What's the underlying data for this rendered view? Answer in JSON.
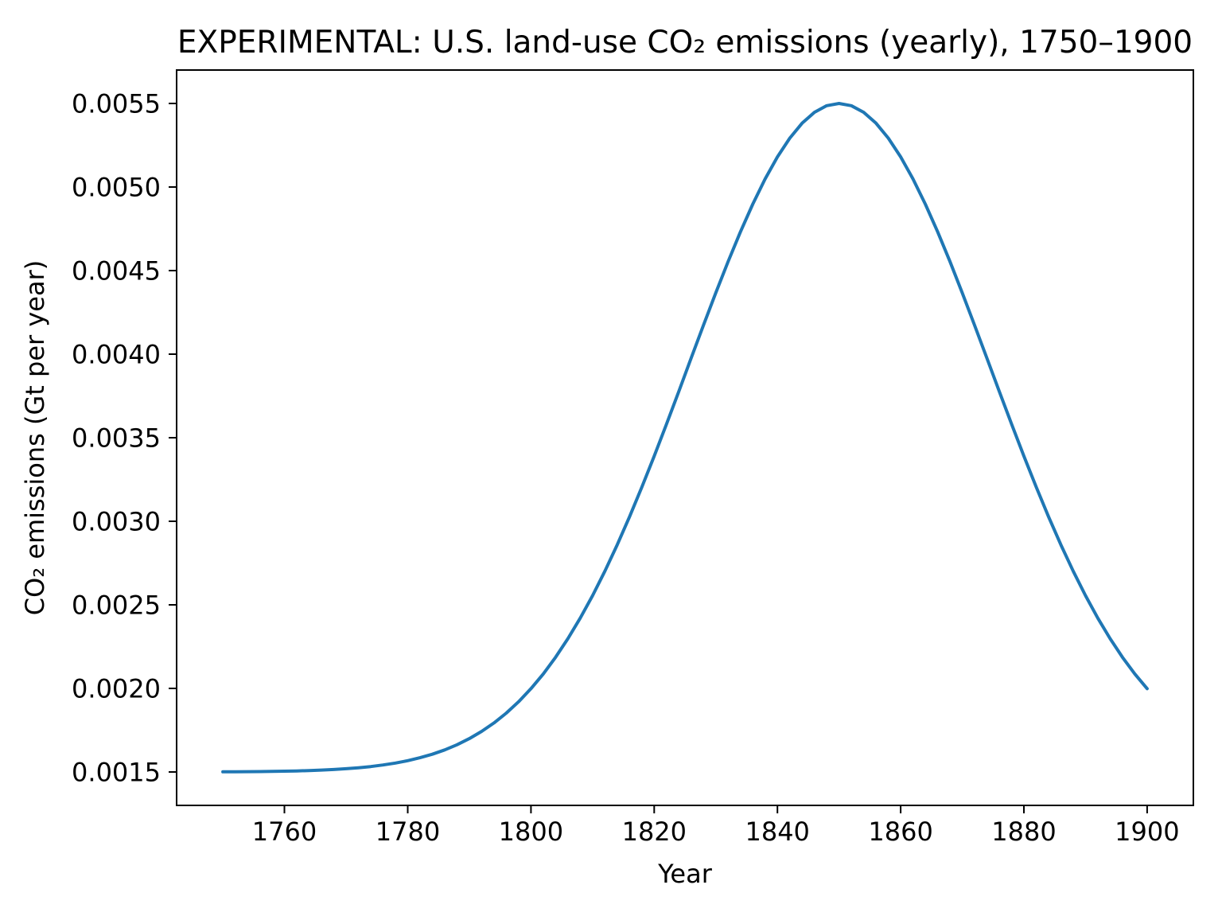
{
  "figure": {
    "background_color": "#ffffff",
    "axis_color": "#000000",
    "line_color": "#1f77b4"
  },
  "chart_data": {
    "type": "line",
    "title": "EXPERIMENTAL: U.S. land-use CO₂ emissions (yearly), 1750–1900",
    "xlabel": "Year",
    "ylabel": "CO₂ emissions (Gt per year)",
    "grid": false,
    "legend": "none",
    "xlim": [
      1742.5,
      1907.5
    ],
    "ylim": [
      0.0013,
      0.0057
    ],
    "x_ticks": [
      1760,
      1780,
      1800,
      1820,
      1840,
      1860,
      1880,
      1900
    ],
    "x_tick_labels": [
      "1760",
      "1780",
      "1800",
      "1820",
      "1840",
      "1860",
      "1880",
      "1900"
    ],
    "y_ticks": [
      0.0015,
      0.002,
      0.0025,
      0.003,
      0.0035,
      0.004,
      0.0045,
      0.005,
      0.0055
    ],
    "y_tick_labels": [
      "0.0015",
      "0.0020",
      "0.0025",
      "0.0030",
      "0.0035",
      "0.0040",
      "0.0045",
      "0.0050",
      "0.0055"
    ],
    "series": [
      {
        "name": "CO₂ emissions",
        "color": "#1f77b4",
        "line_width": 4,
        "x": [
          1750,
          1752,
          1754,
          1756,
          1758,
          1760,
          1762,
          1764,
          1766,
          1768,
          1770,
          1772,
          1774,
          1776,
          1778,
          1780,
          1782,
          1784,
          1786,
          1788,
          1790,
          1792,
          1794,
          1796,
          1798,
          1800,
          1802,
          1804,
          1806,
          1808,
          1810,
          1812,
          1814,
          1816,
          1818,
          1820,
          1822,
          1824,
          1826,
          1828,
          1830,
          1832,
          1834,
          1836,
          1838,
          1840,
          1842,
          1844,
          1846,
          1848,
          1850,
          1852,
          1854,
          1856,
          1858,
          1860,
          1862,
          1864,
          1866,
          1868,
          1870,
          1872,
          1874,
          1876,
          1878,
          1880,
          1882,
          1884,
          1886,
          1888,
          1890,
          1892,
          1894,
          1896,
          1898,
          1900
        ],
        "y": [
          0.001501,
          0.0015013,
          0.0015019,
          0.0015025,
          0.0015035,
          0.0015047,
          0.0015063,
          0.0015084,
          0.0015112,
          0.0015148,
          0.0015194,
          0.0015252,
          0.0015325,
          0.0015418,
          0.0015533,
          0.0015675,
          0.001585,
          0.0016062,
          0.001632,
          0.0016627,
          0.0016994,
          0.0017427,
          0.0017935,
          0.0018525,
          0.0019206,
          0.0019985,
          0.0020869,
          0.0021864,
          0.0022974,
          0.0024203,
          0.002555,
          0.0027014,
          0.002859,
          0.0030271,
          0.0032046,
          0.0033901,
          0.0035818,
          0.0037778,
          0.0039756,
          0.0041728,
          0.0043665,
          0.0045539,
          0.0047319,
          0.0048974,
          0.0050479,
          0.0051803,
          0.0052923,
          0.0053818,
          0.005447,
          0.0054867,
          0.0055,
          0.0054867,
          0.005447,
          0.0053818,
          0.0052923,
          0.0051803,
          0.0050479,
          0.0048974,
          0.0047319,
          0.0045539,
          0.0043665,
          0.0041728,
          0.0039756,
          0.0037778,
          0.0035818,
          0.0033901,
          0.0032046,
          0.0030271,
          0.002859,
          0.0027014,
          0.002555,
          0.0024203,
          0.0022974,
          0.0021864,
          0.0020869,
          0.0019985
        ]
      }
    ]
  }
}
